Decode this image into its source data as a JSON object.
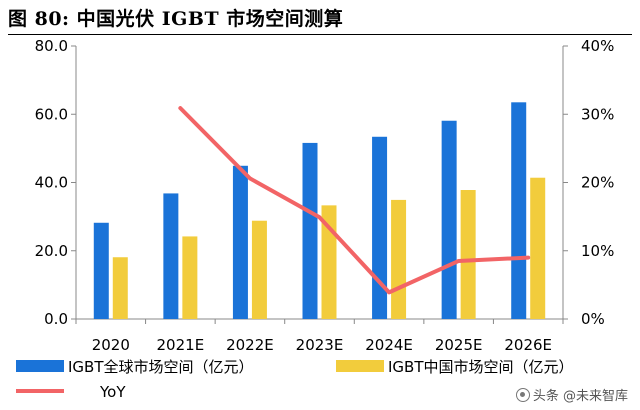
{
  "figure": {
    "title": "图 80:  中国光伏 IGBT 市场空间测算",
    "watermark": "头条 @未来智库"
  },
  "chart_data": {
    "type": "bar",
    "title": "中国光伏 IGBT 市场空间测算",
    "categories": [
      "2020",
      "2021E",
      "2022E",
      "2023E",
      "2024E",
      "2025E",
      "2026E"
    ],
    "series": [
      {
        "name": "IGBT全球市场空间（亿元）",
        "axis": "left",
        "kind": "bar",
        "color": "#1a73d8",
        "values": [
          28.2,
          36.8,
          44.9,
          51.6,
          53.4,
          58.1,
          63.5
        ]
      },
      {
        "name": "IGBT中国市场空间（亿元）",
        "axis": "left",
        "kind": "bar",
        "color": "#f2cc3c",
        "values": [
          18.1,
          24.2,
          28.8,
          33.3,
          34.9,
          37.8,
          41.4
        ]
      },
      {
        "name": "YoY",
        "axis": "right",
        "kind": "line",
        "color": "#f26466",
        "values": [
          null,
          0.309,
          0.206,
          0.149,
          0.039,
          0.085,
          0.09
        ]
      }
    ],
    "y_left": {
      "min": 0,
      "max": 80,
      "ticks": [
        "0.0",
        "20.0",
        "40.0",
        "60.0",
        "80.0"
      ],
      "tick_values": [
        0,
        20,
        40,
        60,
        80
      ]
    },
    "y_right": {
      "min": 0,
      "max": 0.4,
      "ticks": [
        "0%",
        "10%",
        "20%",
        "30%",
        "40%"
      ],
      "tick_values": [
        0,
        0.1,
        0.2,
        0.3,
        0.4
      ]
    },
    "grid": false,
    "legend_position": "bottom"
  }
}
